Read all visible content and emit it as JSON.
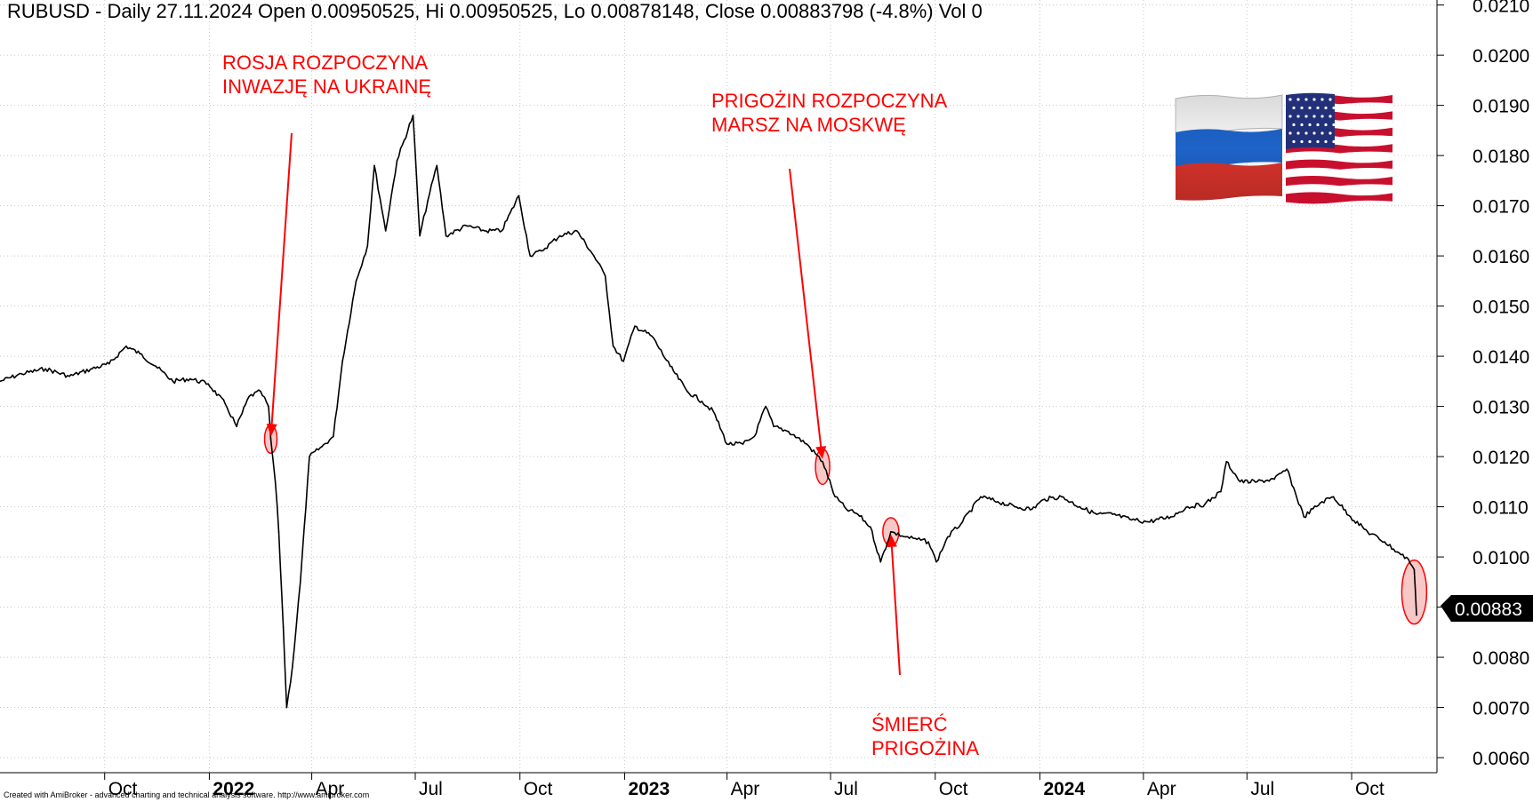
{
  "header": {
    "text": "RUBUSD - Daily 27.11.2024 Open 0.00950525, Hi 0.00950525, Lo 0.00878148, Close 0.00883798 (-4.8%) Vol 0"
  },
  "footer": {
    "text": "Created with AmiBroker - advanced charting and technical analysis software. http://www.amibroker.com"
  },
  "last_value_label": "0.00883",
  "flags": [
    "russia-flag",
    "usa-flag"
  ],
  "colors": {
    "annotation": "#ff0000",
    "highlight_fill": "#f4b6b6",
    "grid": "#c8c8c8",
    "price": "#000000"
  },
  "chart_data": {
    "type": "line",
    "symbol": "RUBUSD",
    "timeframe": "Daily",
    "title": "",
    "xlabel": "",
    "ylabel": "",
    "grid": true,
    "y_ticks": [
      "0.0060",
      "0.0070",
      "0.0080",
      "0.0090",
      "0.0100",
      "0.0110",
      "0.0120",
      "0.0130",
      "0.0140",
      "0.0150",
      "0.0160",
      "0.0170",
      "0.0180",
      "0.0190",
      "0.0200",
      "0.0210"
    ],
    "ylim": [
      0.0057,
      0.0211
    ],
    "x_ticks": [
      {
        "label": "Oct",
        "date": "2021-10-01",
        "bold": false
      },
      {
        "label": "2022",
        "date": "2022-01-01",
        "bold": true
      },
      {
        "label": "Apr",
        "date": "2022-04-01",
        "bold": false
      },
      {
        "label": "Jul",
        "date": "2022-07-01",
        "bold": false
      },
      {
        "label": "Oct",
        "date": "2022-10-01",
        "bold": false
      },
      {
        "label": "2023",
        "date": "2023-01-01",
        "bold": true
      },
      {
        "label": "Apr",
        "date": "2023-04-01",
        "bold": false
      },
      {
        "label": "Jul",
        "date": "2023-07-01",
        "bold": false
      },
      {
        "label": "Oct",
        "date": "2023-10-01",
        "bold": false
      },
      {
        "label": "2024",
        "date": "2024-01-01",
        "bold": true
      },
      {
        "label": "Apr",
        "date": "2024-04-01",
        "bold": false
      },
      {
        "label": "Jul",
        "date": "2024-07-01",
        "bold": false
      },
      {
        "label": "Oct",
        "date": "2024-10-01",
        "bold": false
      }
    ],
    "xlim": [
      "2021-07-01",
      "2024-12-15"
    ],
    "series": [
      {
        "points": [
          [
            "2021-07-01",
            0.0135
          ],
          [
            "2021-07-20",
            0.01365
          ],
          [
            "2021-08-10",
            0.01375
          ],
          [
            "2021-08-31",
            0.0136
          ],
          [
            "2021-09-20",
            0.01375
          ],
          [
            "2021-10-05",
            0.01385
          ],
          [
            "2021-10-20",
            0.0142
          ],
          [
            "2021-11-01",
            0.01405
          ],
          [
            "2021-11-15",
            0.0138
          ],
          [
            "2021-11-30",
            0.0135
          ],
          [
            "2021-12-15",
            0.01355
          ],
          [
            "2021-12-31",
            0.01345
          ],
          [
            "2022-01-15",
            0.01305
          ],
          [
            "2022-01-25",
            0.0126
          ],
          [
            "2022-02-05",
            0.0132
          ],
          [
            "2022-02-15",
            0.0133
          ],
          [
            "2022-02-22",
            0.013
          ],
          [
            "2022-02-24",
            0.01235
          ],
          [
            "2022-02-28",
            0.0115
          ],
          [
            "2022-03-03",
            0.0105
          ],
          [
            "2022-03-07",
            0.0086
          ],
          [
            "2022-03-10",
            0.007
          ],
          [
            "2022-03-15",
            0.0078
          ],
          [
            "2022-03-22",
            0.0095
          ],
          [
            "2022-03-30",
            0.012
          ],
          [
            "2022-04-10",
            0.0122
          ],
          [
            "2022-04-20",
            0.0124
          ],
          [
            "2022-04-28",
            0.0139
          ],
          [
            "2022-05-10",
            0.0155
          ],
          [
            "2022-05-20",
            0.0162
          ],
          [
            "2022-05-26",
            0.0178
          ],
          [
            "2022-06-05",
            0.0165
          ],
          [
            "2022-06-15",
            0.0179
          ],
          [
            "2022-06-29",
            0.0188
          ],
          [
            "2022-07-05",
            0.0164
          ],
          [
            "2022-07-12",
            0.0171
          ],
          [
            "2022-07-20",
            0.0178
          ],
          [
            "2022-07-28",
            0.0164
          ],
          [
            "2022-08-15",
            0.0166
          ],
          [
            "2022-08-31",
            0.0165
          ],
          [
            "2022-09-15",
            0.0165
          ],
          [
            "2022-09-30",
            0.0172
          ],
          [
            "2022-10-10",
            0.016
          ],
          [
            "2022-10-20",
            0.0161
          ],
          [
            "2022-11-05",
            0.0164
          ],
          [
            "2022-11-20",
            0.0165
          ],
          [
            "2022-12-05",
            0.016
          ],
          [
            "2022-12-15",
            0.0156
          ],
          [
            "2022-12-22",
            0.0142
          ],
          [
            "2022-12-31",
            0.0139
          ],
          [
            "2023-01-10",
            0.0146
          ],
          [
            "2023-01-25",
            0.0144
          ],
          [
            "2023-02-10",
            0.0138
          ],
          [
            "2023-02-25",
            0.0133
          ],
          [
            "2023-03-10",
            0.0131
          ],
          [
            "2023-03-20",
            0.0129
          ],
          [
            "2023-04-01",
            0.01225
          ],
          [
            "2023-04-15",
            0.01225
          ],
          [
            "2023-04-25",
            0.0124
          ],
          [
            "2023-05-05",
            0.013
          ],
          [
            "2023-05-12",
            0.0126
          ],
          [
            "2023-05-25",
            0.0125
          ],
          [
            "2023-06-10",
            0.01225
          ],
          [
            "2023-06-24",
            0.0119
          ],
          [
            "2023-07-05",
            0.0112
          ],
          [
            "2023-07-15",
            0.01095
          ],
          [
            "2023-07-25",
            0.01085
          ],
          [
            "2023-08-05",
            0.0106
          ],
          [
            "2023-08-14",
            0.0099
          ],
          [
            "2023-08-23",
            0.0105
          ],
          [
            "2023-09-05",
            0.0104
          ],
          [
            "2023-09-15",
            0.01035
          ],
          [
            "2023-09-25",
            0.0103
          ],
          [
            "2023-10-02",
            0.0099
          ],
          [
            "2023-10-12",
            0.0104
          ],
          [
            "2023-10-25",
            0.0107
          ],
          [
            "2023-11-10",
            0.0112
          ],
          [
            "2023-11-25",
            0.0111
          ],
          [
            "2023-12-10",
            0.011
          ],
          [
            "2023-12-25",
            0.01095
          ],
          [
            "2024-01-05",
            0.01115
          ],
          [
            "2024-01-20",
            0.0112
          ],
          [
            "2024-02-05",
            0.011
          ],
          [
            "2024-02-20",
            0.01085
          ],
          [
            "2024-03-05",
            0.01085
          ],
          [
            "2024-03-20",
            0.01075
          ],
          [
            "2024-04-05",
            0.0107
          ],
          [
            "2024-04-25",
            0.0108
          ],
          [
            "2024-05-10",
            0.011
          ],
          [
            "2024-05-25",
            0.01105
          ],
          [
            "2024-06-08",
            0.0113
          ],
          [
            "2024-06-13",
            0.0119
          ],
          [
            "2024-06-25",
            0.0115
          ],
          [
            "2024-07-10",
            0.0115
          ],
          [
            "2024-07-25",
            0.01155
          ],
          [
            "2024-08-05",
            0.01175
          ],
          [
            "2024-08-20",
            0.0108
          ],
          [
            "2024-09-05",
            0.0111
          ],
          [
            "2024-09-15",
            0.0112
          ],
          [
            "2024-09-30",
            0.0108
          ],
          [
            "2024-10-15",
            0.0105
          ],
          [
            "2024-10-30",
            0.0103
          ],
          [
            "2024-11-10",
            0.0101
          ],
          [
            "2024-11-20",
            0.00995
          ],
          [
            "2024-11-25",
            0.00975
          ],
          [
            "2024-11-27",
            0.00884
          ]
        ]
      }
    ],
    "annotations": [
      {
        "text": [
          "ROSJA ROZPOCZYNA",
          "INWAZJĘ NA UKRAINĘ"
        ],
        "target_date": "2022-02-24",
        "target_value": 0.01235
      },
      {
        "text": [
          "PRIGOŻIN ROZPOCZYNA",
          "MARSZ NA MOSKWĘ"
        ],
        "target_date": "2023-06-24",
        "target_value": 0.0119
      },
      {
        "text": [
          "ŚMIERĆ",
          "PRIGOŻINA"
        ],
        "target_date": "2023-08-23",
        "target_value": 0.0105
      }
    ],
    "highlights": [
      {
        "date": "2022-02-24",
        "value": 0.01235
      },
      {
        "date": "2023-06-24",
        "value": 0.0118
      },
      {
        "date": "2023-08-23",
        "value": 0.0105
      },
      {
        "date": "2024-11-25",
        "value": 0.0093
      }
    ],
    "last_value": 0.00883798
  }
}
